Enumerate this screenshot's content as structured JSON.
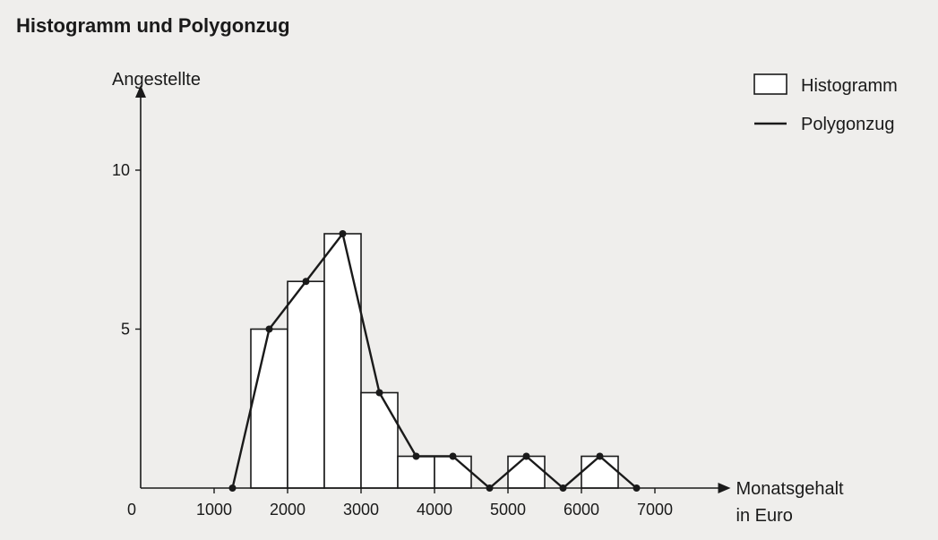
{
  "title": "Histogramm und Polygonzug",
  "colors": {
    "background": "#efeeec",
    "ink": "#1a1a1a",
    "bar_fill": "#ffffff"
  },
  "chart_data": {
    "type": "bar",
    "title": "Histogramm und Polygonzug",
    "ylabel": "Angestellte",
    "xlabel": [
      "Monatsgehalt",
      "in Euro"
    ],
    "origin_label": "0",
    "xlim": [
      0,
      7250
    ],
    "ylim": [
      0,
      12
    ],
    "x_ticks": [
      1000,
      2000,
      3000,
      4000,
      5000,
      6000,
      7000
    ],
    "y_ticks": [
      5,
      10
    ],
    "bin_width": 500,
    "bins": [
      {
        "from": 1500,
        "to": 2000,
        "value": 5
      },
      {
        "from": 2000,
        "to": 2500,
        "value": 6.5
      },
      {
        "from": 2500,
        "to": 3000,
        "value": 8
      },
      {
        "from": 3000,
        "to": 3500,
        "value": 3
      },
      {
        "from": 3500,
        "to": 4000,
        "value": 1
      },
      {
        "from": 4000,
        "to": 4500,
        "value": 1
      },
      {
        "from": 5000,
        "to": 5500,
        "value": 1
      },
      {
        "from": 6000,
        "to": 6500,
        "value": 1
      }
    ],
    "series": [
      {
        "name": "Polygonzug",
        "x": [
          1250,
          1750,
          2250,
          2750,
          3250,
          3750,
          4250,
          4750,
          5250,
          5750,
          6250,
          6750
        ],
        "y": [
          0,
          5,
          6.5,
          8,
          3,
          1,
          1,
          0,
          1,
          0,
          1,
          0
        ]
      }
    ],
    "legend": {
      "position": "top-right",
      "entries": [
        {
          "label": "Histogramm",
          "symbol": "box"
        },
        {
          "label": "Polygonzug",
          "symbol": "line"
        }
      ]
    },
    "grid": false
  }
}
